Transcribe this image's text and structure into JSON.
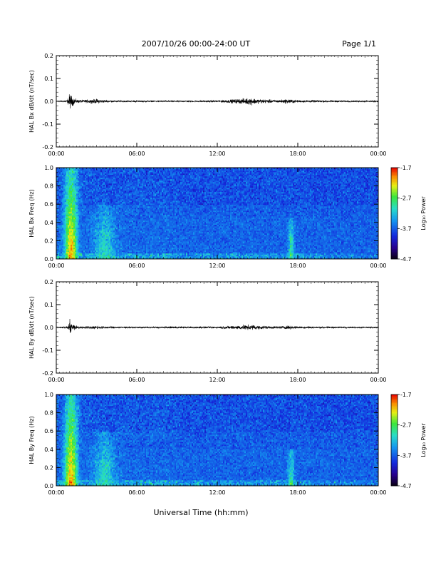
{
  "header": {
    "title": "2007/10/26  00:00-24:00 UT",
    "page": "Page 1/1"
  },
  "footer": {
    "xlabel": "Universal Time (hh:mm)"
  },
  "colorbar": {
    "label": "Log₁₀ Power",
    "ticks": [
      "-1.7",
      "-2.7",
      "-3.7",
      "-4.7"
    ],
    "range": [
      -4.7,
      -1.7
    ]
  },
  "chart_data": [
    {
      "type": "line",
      "ylabel": "HAL Bx dB/dt (nT/sec)",
      "xlim": [
        "00:00",
        "24:00"
      ],
      "ylim": [
        -0.2,
        0.2
      ],
      "xticks": [
        "00:00",
        "06:00",
        "12:00",
        "18:00",
        "00:00"
      ],
      "yticks": [
        "0.2",
        "0.1",
        "0.0",
        "-0.1",
        "-0.2"
      ],
      "envelope": {
        "x_hours": [
          0,
          0.8,
          1.0,
          1.2,
          1.5,
          2.0,
          3.0,
          3.5,
          4.0,
          5.0,
          6.0,
          8.0,
          10.0,
          12.0,
          14.0,
          14.5,
          15.0,
          16.5,
          17.3,
          17.6,
          18.0,
          20.0,
          22.0,
          24.0
        ],
        "amplitude": [
          0.002,
          0.004,
          0.035,
          0.02,
          0.008,
          0.006,
          0.01,
          0.006,
          0.004,
          0.003,
          0.003,
          0.003,
          0.003,
          0.004,
          0.012,
          0.016,
          0.01,
          0.006,
          0.01,
          0.008,
          0.005,
          0.004,
          0.003,
          0.003
        ]
      }
    },
    {
      "type": "heatmap",
      "ylabel": "HAL Bx Freq (Hz)",
      "xlim": [
        "00:00",
        "24:00"
      ],
      "ylim": [
        0.0,
        1.0
      ],
      "xticks": [
        "00:00",
        "06:00",
        "12:00",
        "18:00",
        "00:00"
      ],
      "yticks": [
        "1.0",
        "0.8",
        "0.6",
        "0.4",
        "0.2",
        "0.0"
      ],
      "zlim": [
        -4.7,
        -1.7
      ],
      "features": [
        {
          "t_center_h": 1.1,
          "t_width_h": 0.5,
          "f_max_hz": 1.0,
          "peak_log_power": -2.0
        },
        {
          "t_center_h": 3.6,
          "t_width_h": 0.9,
          "f_max_hz": 0.6,
          "peak_log_power": -3.0
        },
        {
          "t_center_h": 17.5,
          "t_width_h": 0.25,
          "f_max_hz": 0.45,
          "peak_log_power": -2.8
        }
      ]
    },
    {
      "type": "line",
      "ylabel": "HAL By dB/dt (nT/sec)",
      "xlim": [
        "00:00",
        "24:00"
      ],
      "ylim": [
        -0.2,
        0.2
      ],
      "xticks": [
        "00:00",
        "06:00",
        "12:00",
        "18:00",
        "00:00"
      ],
      "yticks": [
        "0.2",
        "0.1",
        "0.0",
        "-0.1",
        "-0.2"
      ],
      "envelope": {
        "x_hours": [
          0,
          0.8,
          1.0,
          1.2,
          1.5,
          2.0,
          3.0,
          3.5,
          4.0,
          5.0,
          6.0,
          8.0,
          10.0,
          12.0,
          14.0,
          14.5,
          15.0,
          16.5,
          17.3,
          17.6,
          18.0,
          20.0,
          22.0,
          24.0
        ],
        "amplitude": [
          0.002,
          0.004,
          0.03,
          0.02,
          0.008,
          0.005,
          0.008,
          0.006,
          0.004,
          0.003,
          0.003,
          0.004,
          0.004,
          0.004,
          0.01,
          0.012,
          0.008,
          0.005,
          0.008,
          0.006,
          0.005,
          0.004,
          0.003,
          0.003
        ]
      }
    },
    {
      "type": "heatmap",
      "ylabel": "HAL By Freq (Hz)",
      "xlim": [
        "00:00",
        "24:00"
      ],
      "ylim": [
        0.0,
        1.0
      ],
      "xticks": [
        "00:00",
        "06:00",
        "12:00",
        "18:00",
        "00:00"
      ],
      "yticks": [
        "1.0",
        "0.8",
        "0.6",
        "0.4",
        "0.2",
        "0.0"
      ],
      "zlim": [
        -4.7,
        -1.7
      ],
      "features": [
        {
          "t_center_h": 1.1,
          "t_width_h": 0.5,
          "f_max_hz": 1.0,
          "peak_log_power": -2.0
        },
        {
          "t_center_h": 3.6,
          "t_width_h": 0.9,
          "f_max_hz": 0.6,
          "peak_log_power": -3.0
        },
        {
          "t_center_h": 17.5,
          "t_width_h": 0.25,
          "f_max_hz": 0.4,
          "peak_log_power": -2.8
        }
      ]
    }
  ]
}
